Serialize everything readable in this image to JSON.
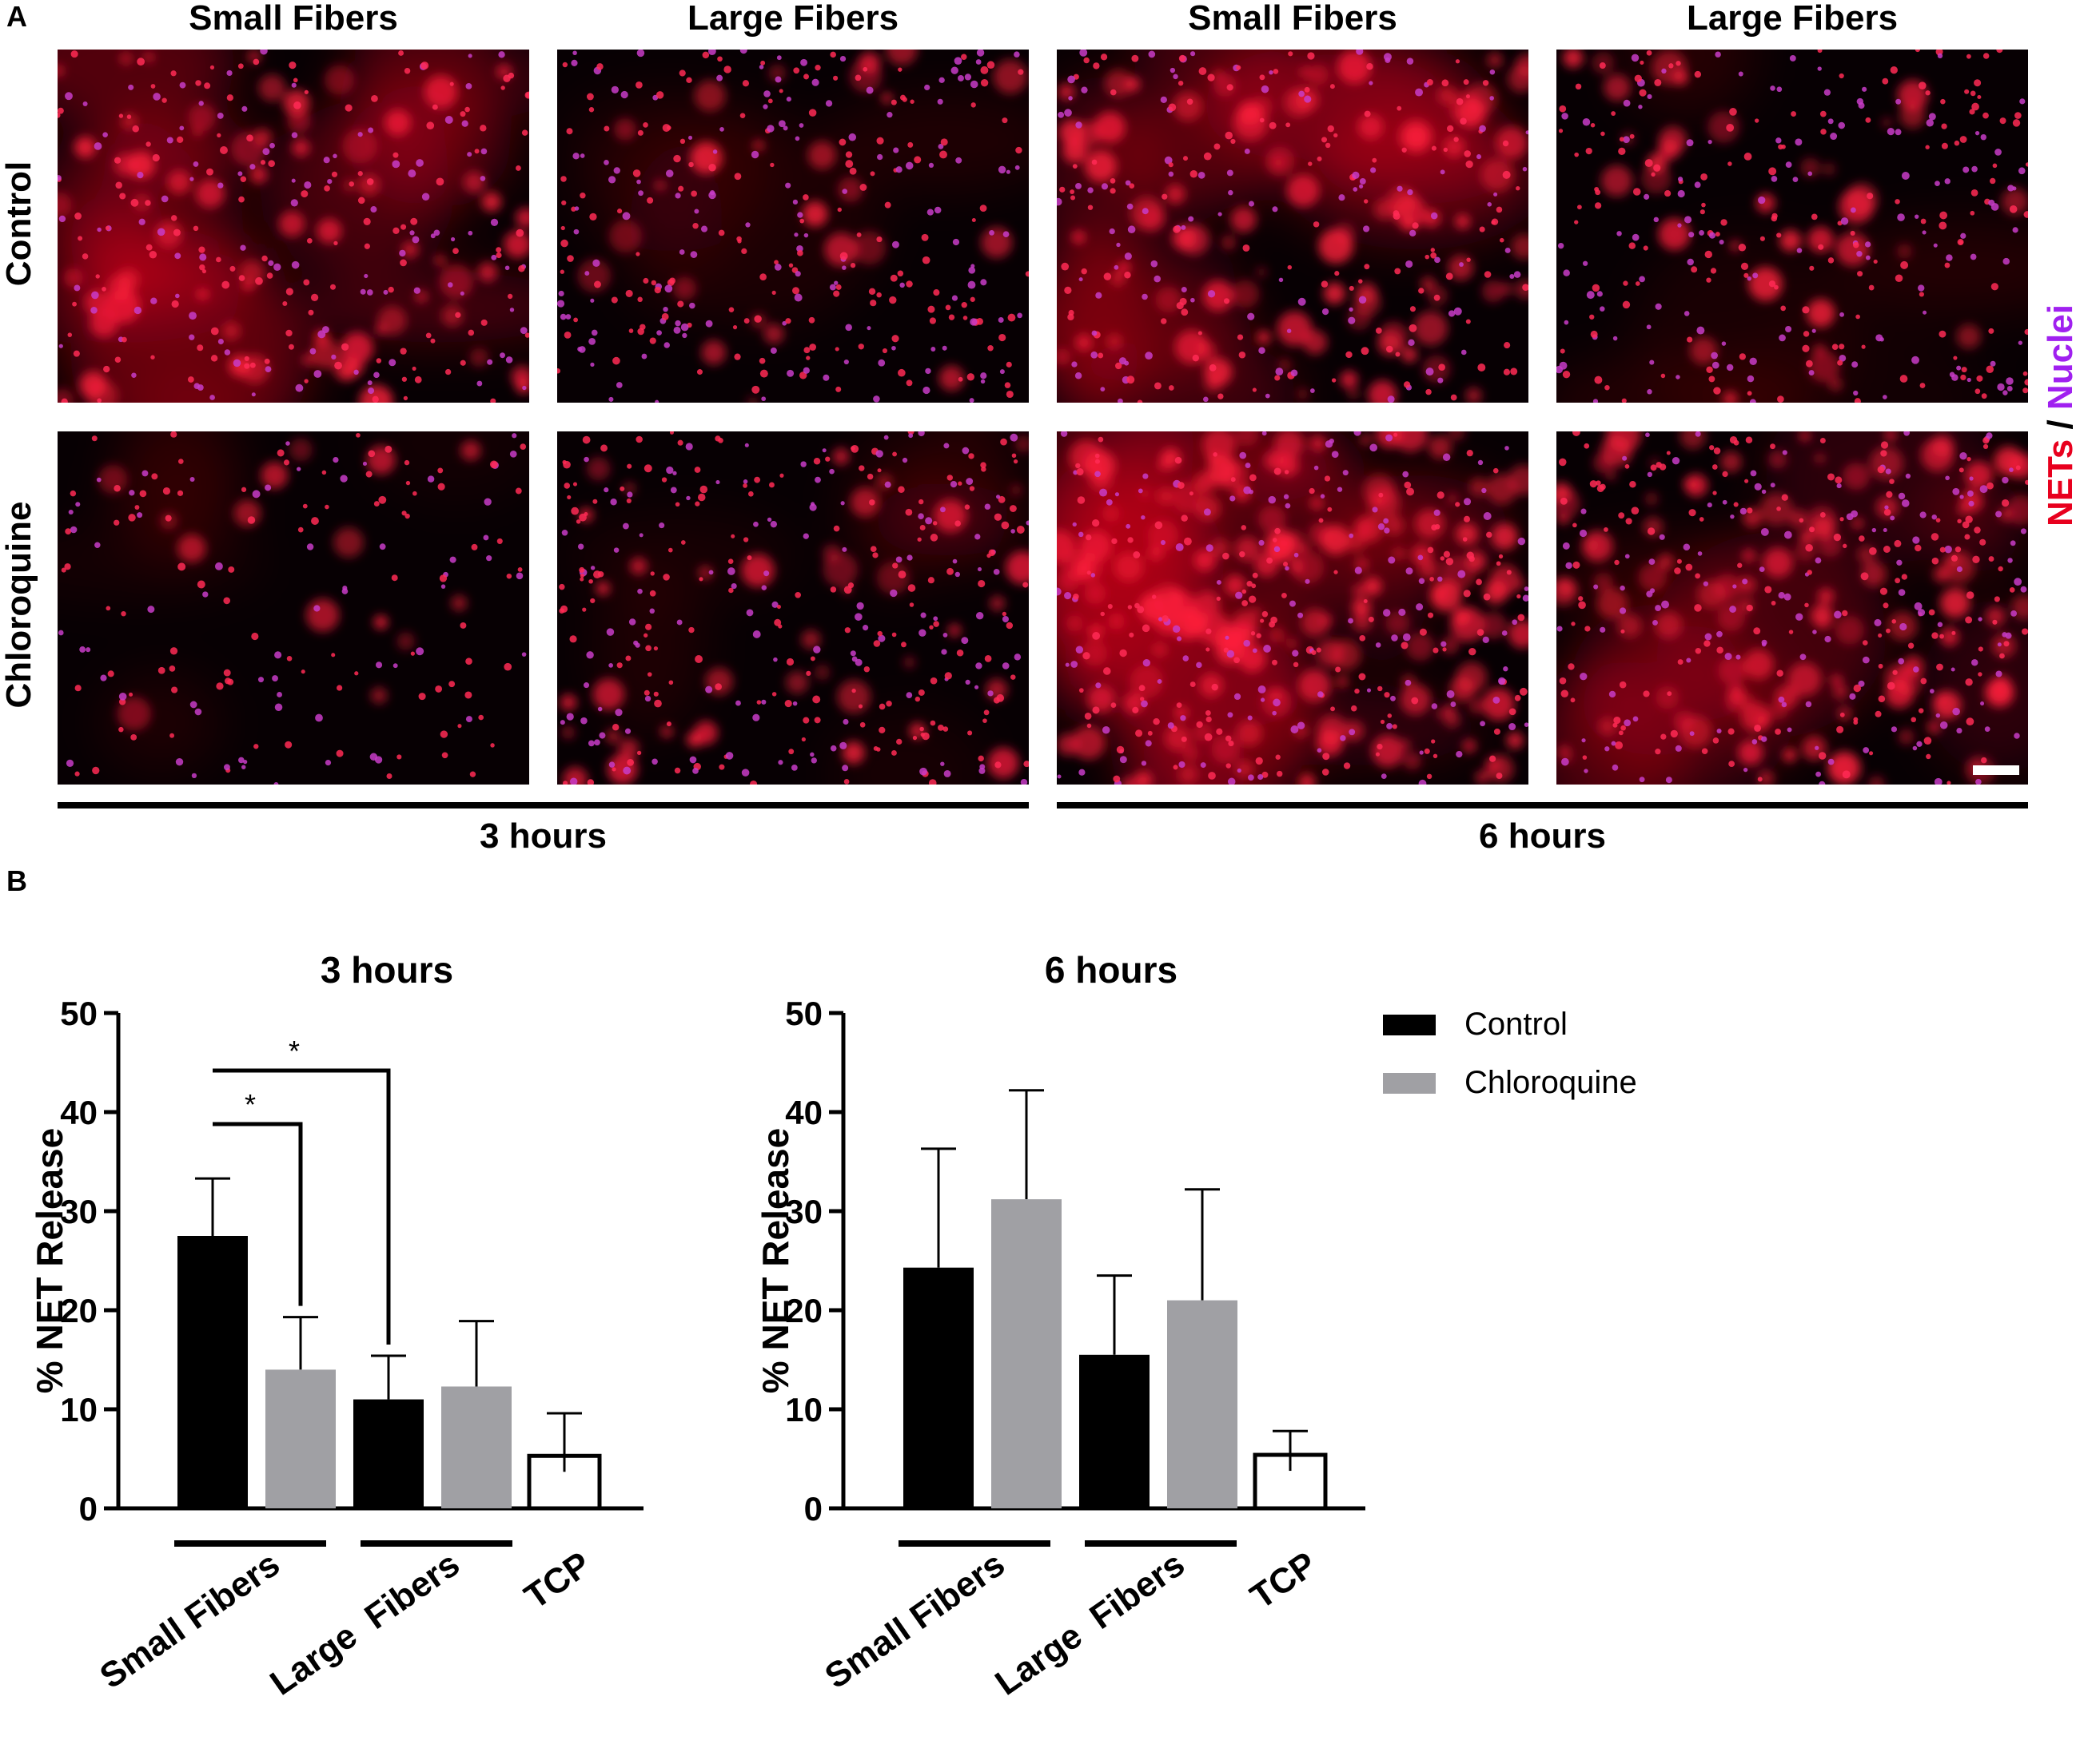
{
  "panel_a": {
    "letter": "A",
    "columns": [
      "Small Fibers",
      "Large Fibers",
      "Small Fibers",
      "Large Fibers"
    ],
    "rows": [
      "Control",
      "Chloroquine"
    ],
    "times": [
      "3 hours",
      "6 hours"
    ],
    "stain": {
      "nets": "NETs",
      "sep": " / ",
      "nuclei": "Nuclei"
    },
    "images": [
      {
        "seed": 11,
        "glow": 0.75,
        "cells": 260,
        "blobs": 70
      },
      {
        "seed": 23,
        "glow": 0.18,
        "cells": 320,
        "blobs": 25
      },
      {
        "seed": 37,
        "glow": 0.65,
        "cells": 260,
        "blobs": 90
      },
      {
        "seed": 41,
        "glow": 0.22,
        "cells": 300,
        "blobs": 35
      },
      {
        "seed": 53,
        "glow": 0.2,
        "cells": 160,
        "blobs": 15
      },
      {
        "seed": 67,
        "glow": 0.3,
        "cells": 330,
        "blobs": 40
      },
      {
        "seed": 79,
        "glow": 0.85,
        "cells": 320,
        "blobs": 160
      },
      {
        "seed": 83,
        "glow": 0.45,
        "cells": 330,
        "blobs": 110
      }
    ],
    "colors": {
      "nets": "#e8001e",
      "nuclei": "#a020f0"
    }
  },
  "panel_b": {
    "letter": "B"
  },
  "legend": [
    {
      "label": "Control",
      "color": "#000000"
    },
    {
      "label": "Chloroquine",
      "color": "#a0a0a4"
    }
  ],
  "chart_data": [
    {
      "type": "bar",
      "title": "3 hours",
      "ylabel": "% NET Release",
      "ylim": [
        0,
        50
      ],
      "yticks": [
        0,
        10,
        20,
        30,
        40,
        50
      ],
      "groups": [
        "Small Fibers",
        "Large  Fibers",
        "TCP"
      ],
      "bars": [
        {
          "group": "Small Fibers",
          "series": "Control",
          "value": 27.5,
          "error": 5.8
        },
        {
          "group": "Small Fibers",
          "series": "Chloroquine",
          "value": 14.0,
          "error": 5.3
        },
        {
          "group": "Large  Fibers",
          "series": "Control",
          "value": 11.0,
          "error": 4.4
        },
        {
          "group": "Large  Fibers",
          "series": "Chloroquine",
          "value": 12.3,
          "error": 6.6
        },
        {
          "group": "TCP",
          "series": "TCP",
          "value": 5.3,
          "error": 4.3
        }
      ],
      "significance": [
        {
          "from": 0,
          "to": 1,
          "label": "*"
        },
        {
          "from": 0,
          "to": 2,
          "label": "*"
        }
      ]
    },
    {
      "type": "bar",
      "title": "6 hours",
      "ylabel": "% NET Release",
      "ylim": [
        0,
        50
      ],
      "yticks": [
        0,
        10,
        20,
        30,
        40,
        50
      ],
      "groups": [
        "Small Fibers",
        "Large  Fibers",
        "TCP"
      ],
      "bars": [
        {
          "group": "Small Fibers",
          "series": "Control",
          "value": 24.3,
          "error": 12.0
        },
        {
          "group": "Small Fibers",
          "series": "Chloroquine",
          "value": 31.2,
          "error": 11.0
        },
        {
          "group": "Large  Fibers",
          "series": "Control",
          "value": 15.5,
          "error": 8.0
        },
        {
          "group": "Large  Fibers",
          "series": "Chloroquine",
          "value": 21.0,
          "error": 11.2
        },
        {
          "group": "TCP",
          "series": "TCP",
          "value": 5.4,
          "error": 2.4
        }
      ],
      "significance": []
    }
  ]
}
